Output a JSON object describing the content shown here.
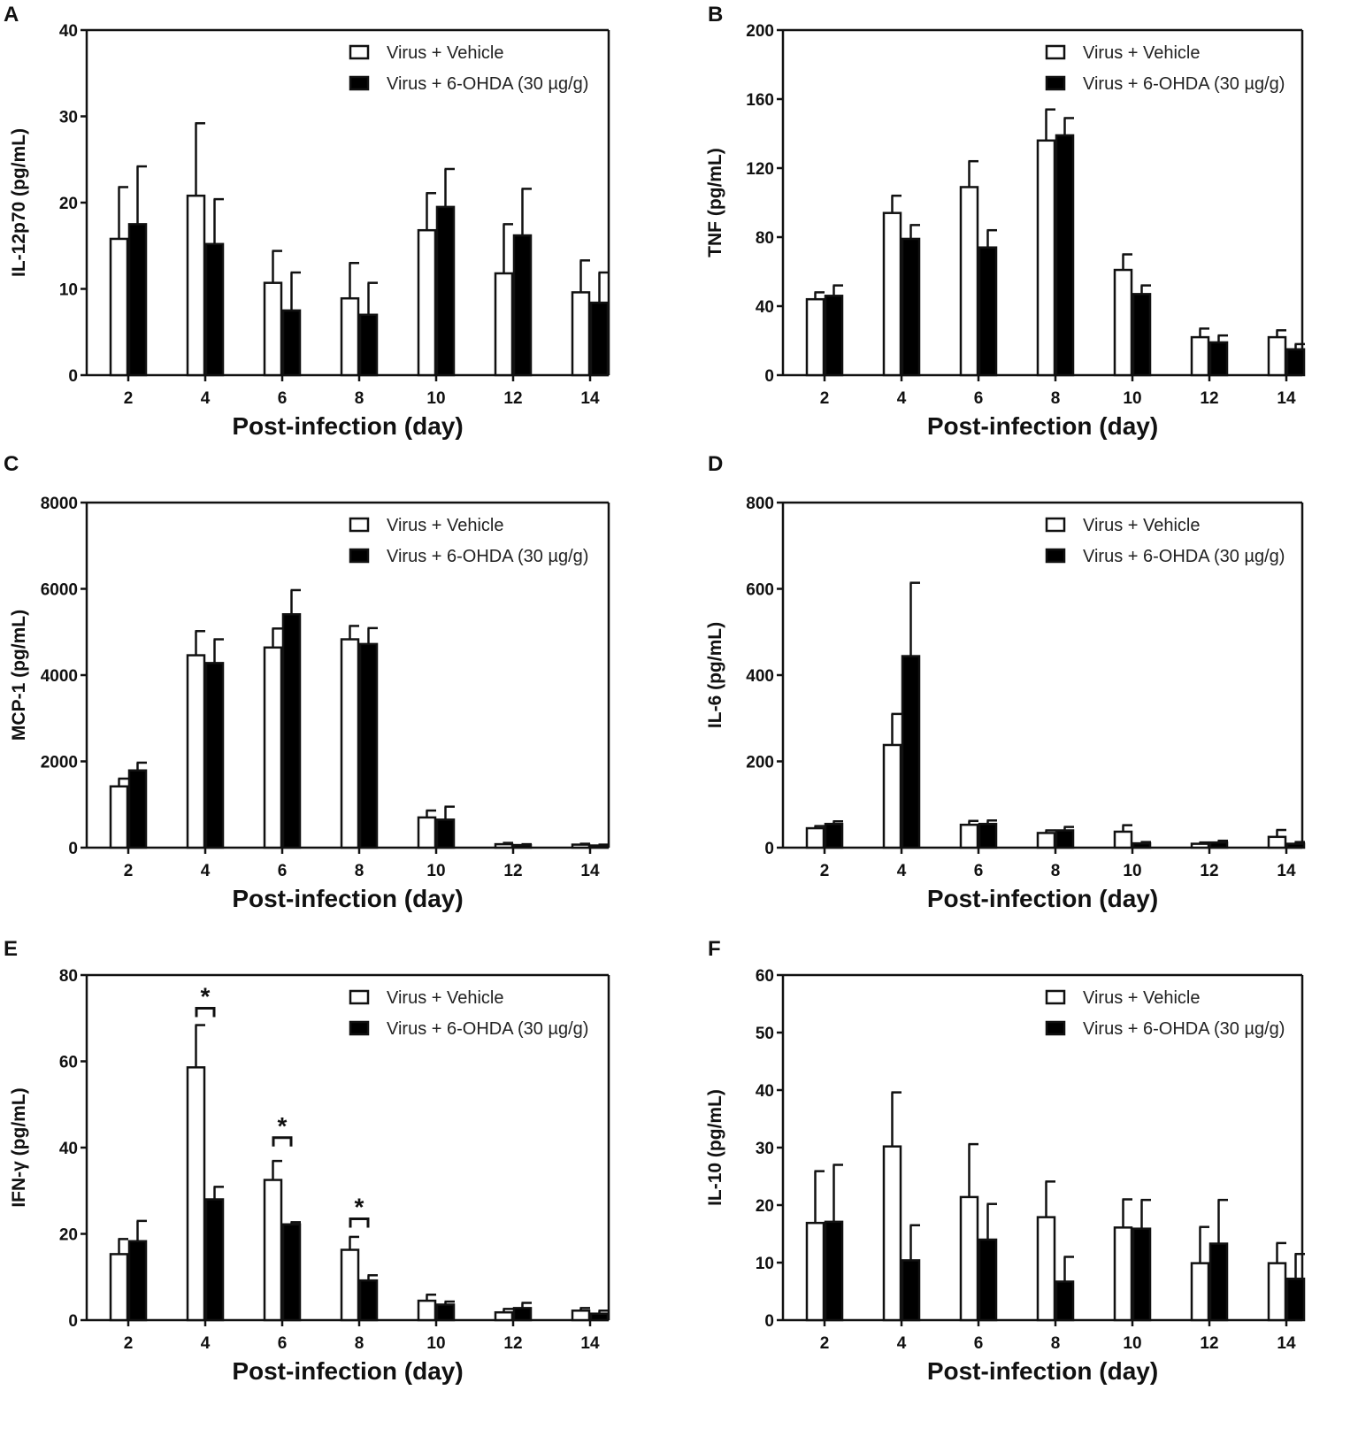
{
  "chart_data": [
    {
      "panel": "A",
      "type": "bar",
      "title": "",
      "xlabel": "Post-infection (day)",
      "ylabel": "IL-12p70 (pg/mL)",
      "ylim": [
        0,
        40
      ],
      "yticks": [
        0,
        10,
        20,
        30,
        40
      ],
      "categories": [
        "2",
        "4",
        "6",
        "8",
        "10",
        "12",
        "14"
      ],
      "legend_position": "top-right",
      "series": [
        {
          "name": "Virus + Vehicle",
          "fill": "#ffffff",
          "values": [
            15.8,
            20.8,
            10.7,
            8.9,
            16.8,
            11.8,
            9.6
          ],
          "errors": [
            6.0,
            8.4,
            3.7,
            4.1,
            4.3,
            5.7,
            3.7
          ]
        },
        {
          "name": "Virus + 6-OHDA (30 µg/g)",
          "fill": "#000000",
          "values": [
            17.5,
            15.2,
            7.5,
            7.0,
            19.5,
            16.2,
            8.4
          ],
          "errors": [
            6.7,
            5.2,
            4.4,
            3.7,
            4.4,
            5.4,
            3.5
          ]
        }
      ],
      "significance": []
    },
    {
      "panel": "B",
      "type": "bar",
      "title": "",
      "xlabel": "Post-infection (day)",
      "ylabel": "TNF (pg/mL)",
      "ylim": [
        0,
        200
      ],
      "yticks": [
        0,
        40,
        80,
        120,
        160,
        200
      ],
      "categories": [
        "2",
        "4",
        "6",
        "8",
        "10",
        "12",
        "14"
      ],
      "legend_position": "top-right",
      "series": [
        {
          "name": "Virus + Vehicle",
          "fill": "#ffffff",
          "values": [
            44,
            94,
            109,
            136,
            61,
            22,
            22
          ],
          "errors": [
            4,
            10,
            15,
            18,
            9,
            5,
            4
          ]
        },
        {
          "name": "Virus + 6-OHDA (30 µg/g)",
          "fill": "#000000",
          "values": [
            46,
            79,
            74,
            139,
            47,
            19,
            15
          ],
          "errors": [
            6,
            8,
            10,
            10,
            5,
            4,
            3
          ]
        }
      ],
      "significance": []
    },
    {
      "panel": "C",
      "type": "bar",
      "title": "",
      "xlabel": "Post-infection (day)",
      "ylabel": "MCP-1 (pg/mL)",
      "ylim": [
        0,
        8000
      ],
      "yticks": [
        0,
        2000,
        4000,
        6000,
        8000
      ],
      "categories": [
        "2",
        "4",
        "6",
        "8",
        "10",
        "12",
        "14"
      ],
      "legend_position": "top-right",
      "series": [
        {
          "name": "Virus + Vehicle",
          "fill": "#ffffff",
          "values": [
            1420,
            4460,
            4640,
            4830,
            700,
            80,
            70
          ],
          "errors": [
            180,
            560,
            440,
            310,
            160,
            30,
            20
          ]
        },
        {
          "name": "Virus + 6-OHDA (30 µg/g)",
          "fill": "#000000",
          "values": [
            1790,
            4280,
            5410,
            4720,
            650,
            60,
            50
          ],
          "errors": [
            180,
            550,
            560,
            370,
            300,
            20,
            20
          ]
        }
      ],
      "significance": []
    },
    {
      "panel": "D",
      "type": "bar",
      "title": "",
      "xlabel": "Post-infection (day)",
      "ylabel": "IL-6 (pg/mL)",
      "ylim": [
        0,
        800
      ],
      "yticks": [
        0,
        200,
        400,
        600,
        800
      ],
      "categories": [
        "2",
        "4",
        "6",
        "8",
        "10",
        "12",
        "14"
      ],
      "legend_position": "top-right",
      "series": [
        {
          "name": "Virus + Vehicle",
          "fill": "#ffffff",
          "values": [
            45,
            238,
            53,
            34,
            37,
            9,
            25
          ],
          "errors": [
            5,
            72,
            9,
            6,
            15,
            3,
            16
          ]
        },
        {
          "name": "Virus + 6-OHDA (30 µg/g)",
          "fill": "#000000",
          "values": [
            55,
            444,
            55,
            40,
            10,
            12,
            9
          ],
          "errors": [
            6,
            170,
            8,
            8,
            3,
            4,
            4
          ]
        }
      ],
      "significance": []
    },
    {
      "panel": "E",
      "type": "bar",
      "title": "",
      "xlabel": "Post-infection (day)",
      "ylabel": "IFN-γ (pg/mL)",
      "ylim": [
        0,
        80
      ],
      "yticks": [
        0,
        20,
        40,
        60,
        80
      ],
      "categories": [
        "2",
        "4",
        "6",
        "8",
        "10",
        "12",
        "14"
      ],
      "legend_position": "top-right",
      "series": [
        {
          "name": "Virus + Vehicle",
          "fill": "#ffffff",
          "values": [
            15.3,
            58.6,
            32.5,
            16.3,
            4.5,
            1.8,
            2.2
          ],
          "errors": [
            3.5,
            9.8,
            4.4,
            3.0,
            1.4,
            0.8,
            0.6
          ]
        },
        {
          "name": "Virus + 6-OHDA (30 µg/g)",
          "fill": "#000000",
          "values": [
            18.3,
            28.0,
            22.2,
            9.2,
            3.6,
            2.8,
            1.5
          ],
          "errors": [
            4.7,
            2.9,
            0.5,
            1.2,
            0.7,
            1.2,
            0.7
          ]
        }
      ],
      "significance": [
        {
          "category": "4",
          "label": "*",
          "bracket_y": 72.3
        },
        {
          "category": "6",
          "label": "*",
          "bracket_y": 42.3
        },
        {
          "category": "8",
          "label": "*",
          "bracket_y": 23.5
        }
      ]
    },
    {
      "panel": "F",
      "type": "bar",
      "title": "",
      "xlabel": "Post-infection (day)",
      "ylabel": "IL-10 (pg/mL)",
      "ylim": [
        0,
        60
      ],
      "yticks": [
        0,
        10,
        20,
        30,
        40,
        50,
        60
      ],
      "categories": [
        "2",
        "4",
        "6",
        "8",
        "10",
        "12",
        "14"
      ],
      "legend_position": "top-right",
      "series": [
        {
          "name": "Virus + Vehicle",
          "fill": "#ffffff",
          "values": [
            16.9,
            30.2,
            21.4,
            17.9,
            16.1,
            9.9,
            9.9
          ],
          "errors": [
            9.0,
            9.4,
            9.2,
            6.2,
            4.9,
            6.3,
            3.5
          ]
        },
        {
          "name": "Virus + 6-OHDA (30 µg/g)",
          "fill": "#000000",
          "values": [
            17.1,
            10.4,
            14.0,
            6.7,
            15.9,
            13.3,
            7.2
          ],
          "errors": [
            9.9,
            6.1,
            6.2,
            4.3,
            5.0,
            7.6,
            4.3
          ]
        }
      ],
      "significance": []
    }
  ]
}
